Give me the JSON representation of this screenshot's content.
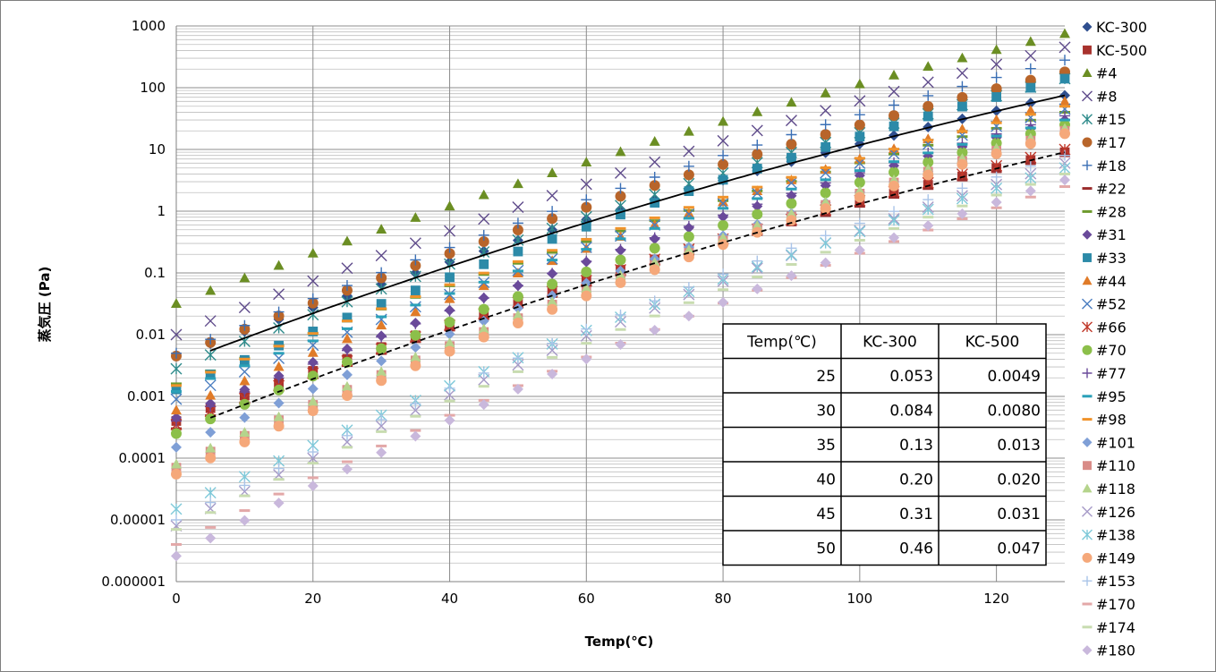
{
  "chart_data": {
    "type": "scatter",
    "xlabel": "Temp(℃)",
    "ylabel": "蒸気圧 (Pa)",
    "xlim": [
      0,
      130
    ],
    "ylim": [
      1e-06,
      1000
    ],
    "yscale": "log",
    "grid": true,
    "legend_position": "right",
    "x_ticks": [
      "0",
      "20",
      "40",
      "60",
      "80",
      "100",
      "120"
    ],
    "y_ticks": [
      "0.000001",
      "0.00001",
      "0.0001",
      "0.001",
      "0.01",
      "0.1",
      "1",
      "10",
      "100",
      "1000"
    ],
    "x": [
      0,
      5,
      10,
      15,
      20,
      25,
      30,
      35,
      40,
      45,
      50,
      55,
      60,
      65,
      70,
      75,
      80,
      85,
      90,
      95,
      100,
      105,
      110,
      115,
      120,
      125,
      130
    ],
    "series": [
      {
        "name": "KC-300",
        "marker": "diamond",
        "color": "#2f4f8f",
        "y0": 0.0045,
        "y130": 75
      },
      {
        "name": "KC-500",
        "marker": "square",
        "color": "#a8322d",
        "y0": 0.0004,
        "y130": 9
      },
      {
        "name": "#4",
        "marker": "triangle",
        "color": "#6b8e23",
        "y0": 0.032,
        "y130": 750
      },
      {
        "name": "#8",
        "marker": "x",
        "color": "#5f4b8b",
        "y0": 0.01,
        "y130": 450
      },
      {
        "name": "#15",
        "marker": "asterisk",
        "color": "#2e8b8b",
        "y0": 0.0028,
        "y130": 140
      },
      {
        "name": "#17",
        "marker": "circle",
        "color": "#b8652a",
        "y0": 0.0045,
        "y130": 180
      },
      {
        "name": "#18",
        "marker": "plus",
        "color": "#3a6fb5",
        "y0": 0.005,
        "y130": 280
      },
      {
        "name": "#22",
        "marker": "dash",
        "color": "#9b2d2d",
        "y0": 0.0003,
        "y130": 8
      },
      {
        "name": "#28",
        "marker": "dash",
        "color": "#6e9a2e",
        "y0": 0.0016,
        "y130": 40
      },
      {
        "name": "#31",
        "marker": "diamond",
        "color": "#6a4a9a",
        "y0": 0.00045,
        "y130": 30
      },
      {
        "name": "#33",
        "marker": "square",
        "color": "#2c8aa8",
        "y0": 0.0013,
        "y130": 140
      },
      {
        "name": "#44",
        "marker": "triangle",
        "color": "#e07b28",
        "y0": 0.0006,
        "y130": 60
      },
      {
        "name": "#52",
        "marker": "x",
        "color": "#4a7dc0",
        "y0": 0.0009,
        "y130": 45
      },
      {
        "name": "#66",
        "marker": "asterisk",
        "color": "#c0392b",
        "y0": 0.00035,
        "y130": 10
      },
      {
        "name": "#70",
        "marker": "circle",
        "color": "#8cbf4a",
        "y0": 0.00025,
        "y130": 25
      },
      {
        "name": "#77",
        "marker": "plus",
        "color": "#6a4a9a",
        "y0": 0.0004,
        "y130": 35
      },
      {
        "name": "#95",
        "marker": "dash",
        "color": "#2aa0b8",
        "y0": 0.0012,
        "y130": 30
      },
      {
        "name": "#98",
        "marker": "dash",
        "color": "#f0932b",
        "y0": 0.0015,
        "y130": 50
      },
      {
        "name": "#101",
        "marker": "diamond",
        "color": "#7f9fd6",
        "y0": 0.00015,
        "y130": 18
      },
      {
        "name": "#110",
        "marker": "square",
        "color": "#d98b87",
        "y0": 7e-05,
        "y130": 20
      },
      {
        "name": "#118",
        "marker": "triangle",
        "color": "#b5d48c",
        "y0": 8e-05,
        "y130": 22
      },
      {
        "name": "#126",
        "marker": "x",
        "color": "#a69ac7",
        "y0": 8e-06,
        "y130": 6
      },
      {
        "name": "#138",
        "marker": "asterisk",
        "color": "#7fc9d9",
        "y0": 1.5e-05,
        "y130": 5
      },
      {
        "name": "#149",
        "marker": "circle",
        "color": "#f5a87a",
        "y0": 5.5e-05,
        "y130": 18
      },
      {
        "name": "#153",
        "marker": "plus",
        "color": "#a9c4e8",
        "y0": 1e-05,
        "y130": 8
      },
      {
        "name": "#170",
        "marker": "dash",
        "color": "#e3a8a8",
        "y0": 4e-06,
        "y130": 2.5
      },
      {
        "name": "#174",
        "marker": "dash",
        "color": "#c8dcb0",
        "y0": 7e-06,
        "y130": 4
      },
      {
        "name": "#180",
        "marker": "diamond",
        "color": "#c9b8dc",
        "y0": 2.6e-06,
        "y130": 3.2
      }
    ],
    "curves": [
      {
        "style": "solid",
        "x": [
          5,
          130
        ],
        "y0": 0.0055,
        "y130": 75
      },
      {
        "style": "dashed",
        "x": [
          5,
          130
        ],
        "y0": 0.00045,
        "y130": 9
      }
    ],
    "table": {
      "headers": [
        "Temp(℃)",
        "KC-300",
        "KC-500"
      ],
      "rows": [
        [
          "25",
          "0.053",
          "0.0049"
        ],
        [
          "30",
          "0.084",
          "0.0080"
        ],
        [
          "35",
          "0.13",
          "0.013"
        ],
        [
          "40",
          "0.20",
          "0.020"
        ],
        [
          "45",
          "0.31",
          "0.031"
        ],
        [
          "50",
          "0.46",
          "0.047"
        ]
      ]
    }
  }
}
